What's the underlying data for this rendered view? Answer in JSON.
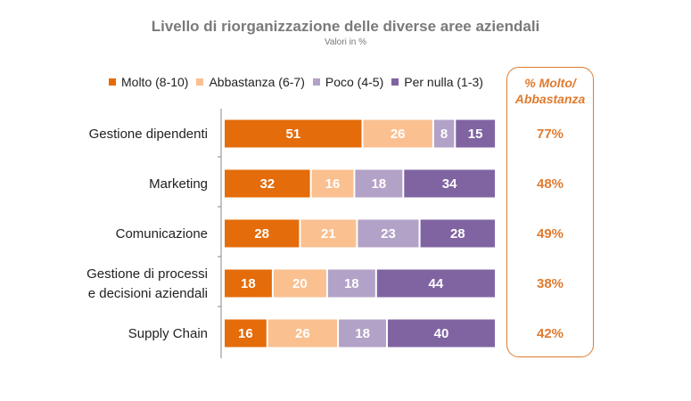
{
  "chart_data": {
    "type": "bar",
    "orientation": "horizontal",
    "stacked": true,
    "title": "Livello di riorganizzazione delle diverse aree aziendali",
    "subtitle": "Valori in %",
    "categories": [
      [
        "Gestione dipendenti"
      ],
      [
        "Marketing"
      ],
      [
        "Comunicazione"
      ],
      [
        "Gestione di processi",
        "e decisioni aziendali"
      ],
      [
        "Supply Chain"
      ]
    ],
    "series": [
      {
        "name": "Molto (8-10)",
        "color": "#e46c0a",
        "values": [
          51,
          32,
          28,
          18,
          16
        ]
      },
      {
        "name": "Abbastanza (6-7)",
        "color": "#fac090",
        "values": [
          26,
          16,
          21,
          20,
          26
        ]
      },
      {
        "name": "Poco (4-5)",
        "color": "#b3a2c7",
        "values": [
          8,
          18,
          23,
          18,
          18
        ]
      },
      {
        "name": "Per nulla (1-3)",
        "color": "#8064a2",
        "values": [
          15,
          34,
          28,
          44,
          40
        ]
      }
    ],
    "xlim": [
      0,
      100
    ],
    "legend_position": "top",
    "grid": false,
    "side_panel": {
      "header": [
        "% Molto/",
        "Abbastanza"
      ],
      "values": [
        "77%",
        "48%",
        "49%",
        "38%",
        "42%"
      ],
      "color": "#e07a2e"
    }
  }
}
